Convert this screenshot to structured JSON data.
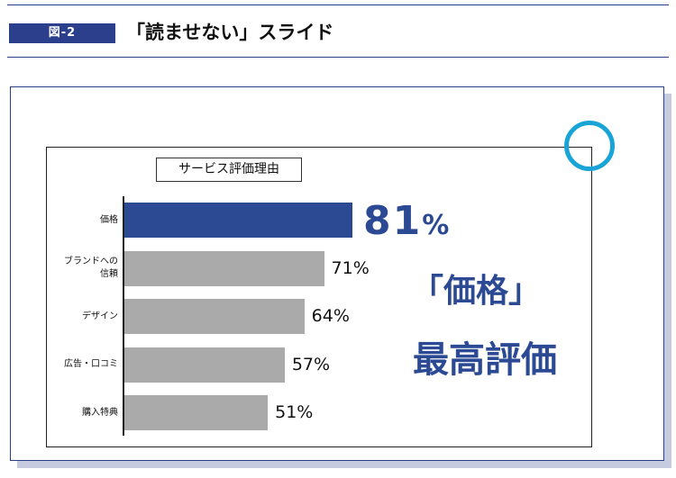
{
  "header": {
    "figure_label": "図-2",
    "title": "「読ませない」スライド"
  },
  "callout": {
    "line1": "「価格」",
    "line2": "最高評価"
  },
  "colors": {
    "accent": "#2c4a94",
    "bar_default": "#aaaaaa",
    "circle": "#19a4d8"
  },
  "chart_data": {
    "type": "bar",
    "orientation": "horizontal",
    "title": "サービス評価理由",
    "categories": [
      "価格",
      "ブランドへの信頼",
      "デザイン",
      "広告・口コミ",
      "購入特典"
    ],
    "category_lines": [
      [
        "価格"
      ],
      [
        "ブランドへの",
        "信頼"
      ],
      [
        "デザイン"
      ],
      [
        "広告・口コミ"
      ],
      [
        "購入特典"
      ]
    ],
    "values": [
      81,
      71,
      64,
      57,
      51
    ],
    "value_labels": [
      "81%",
      "71%",
      "64%",
      "57%",
      "51%"
    ],
    "highlight_index": 0,
    "xlim": [
      0,
      100
    ],
    "grid": false,
    "legend": "none"
  }
}
